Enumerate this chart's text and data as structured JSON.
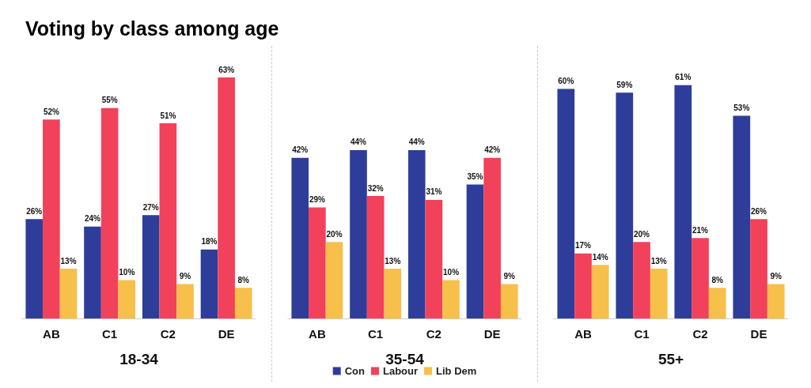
{
  "chart_data": [
    {
      "type": "bar",
      "title": "Voting by class among age",
      "xlabel": "18-34",
      "categories": [
        "AB",
        "C1",
        "C2",
        "DE"
      ],
      "tick_labels": "x",
      "series": [
        {
          "color": "#2e3d9a",
          "values": [
            26,
            24,
            27,
            18
          ],
          "value_labels": [
            "26%",
            "24%",
            "27%",
            "18%"
          ]
        },
        {
          "color": "#f2415a",
          "values": [
            52,
            55,
            51,
            63
          ],
          "value_labels": [
            "52%",
            "55%",
            "51%",
            "63%"
          ]
        },
        {
          "color": "#f6c04b",
          "values": [
            13,
            10,
            9,
            8
          ],
          "value_labels": [
            "13%",
            "10%",
            "9%",
            "8%"
          ]
        }
      ]
    },
    {
      "type": "bar",
      "xlabel": "35-54",
      "categories": [
        "AB",
        "C1",
        "C2",
        "DE"
      ],
      "tick_labels": "x",
      "legend": "bottom",
      "series": [
        {
          "name": "Con",
          "color": "#2e3d9a",
          "values": [
            42,
            44,
            44,
            35
          ],
          "value_labels": [
            "42%",
            "44%",
            "44%",
            "35%"
          ]
        },
        {
          "name": "Labour",
          "color": "#f2415a",
          "values": [
            29,
            32,
            31,
            42
          ],
          "value_labels": [
            "29%",
            "32%",
            "31%",
            "42%"
          ]
        },
        {
          "name": "Lib Dem",
          "color": "#f6c04b",
          "values": [
            20,
            13,
            10,
            9
          ],
          "value_labels": [
            "20%",
            "13%",
            "10%",
            "9%"
          ]
        }
      ]
    },
    {
      "type": "bar",
      "xlabel": "55+",
      "categories": [
        "AB",
        "C1",
        "C2",
        "DE"
      ],
      "tick_labels": "x",
      "series": [
        {
          "color": "#2e3d9a",
          "values": [
            60,
            59,
            61,
            53
          ],
          "value_labels": [
            "60%",
            "59%",
            "61%",
            "53%"
          ]
        },
        {
          "color": "#f2415a",
          "values": [
            17,
            20,
            21,
            26
          ],
          "value_labels": [
            "17%",
            "20%",
            "21%",
            "26%"
          ]
        },
        {
          "color": "#f6c04b",
          "values": [
            14,
            13,
            8,
            9
          ],
          "value_labels": [
            "14%",
            "13%",
            "8%",
            "9%"
          ]
        }
      ]
    }
  ]
}
